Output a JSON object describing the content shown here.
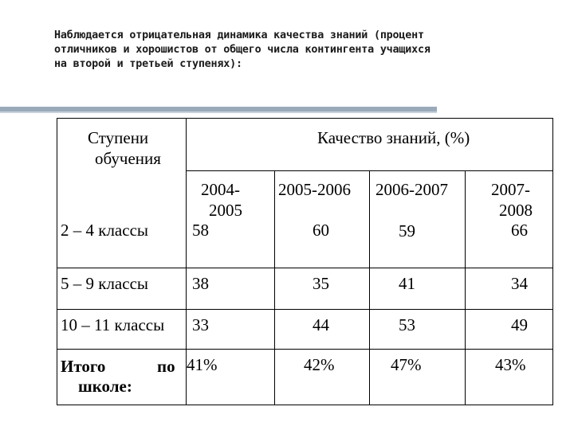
{
  "heading": {
    "lines": [
      "Наблюдается отрицательная динамика  качества знаний (процент",
      "отличников и хорошистов от общего числа контингента учащихся",
      "на второй и третьей ступенях):"
    ]
  },
  "table": {
    "stage_header_lines": [
      "Ступени",
      "обучения"
    ],
    "quality_header": "Качество знаний, (%)",
    "years": [
      {
        "lines": [
          "2004-",
          "2005"
        ]
      },
      {
        "lines": [
          "2005-2006"
        ]
      },
      {
        "lines": [
          "2006-2007"
        ]
      },
      {
        "lines": [
          "2007-",
          "2008"
        ]
      }
    ],
    "rows": [
      {
        "label": "2 – 4  классы",
        "values": [
          "58",
          "60",
          "59",
          "66"
        ]
      },
      {
        "label": "5 – 9 классы",
        "values": [
          "38",
          "35",
          "41",
          "34"
        ]
      },
      {
        "label": "10 – 11 классы",
        "values": [
          "33",
          "44",
          "53",
          "49"
        ]
      }
    ],
    "total": {
      "label_lines": [
        "Итого",
        "по",
        "школе:"
      ],
      "values": [
        "41%",
        "42%",
        "47%",
        "43%"
      ]
    }
  }
}
